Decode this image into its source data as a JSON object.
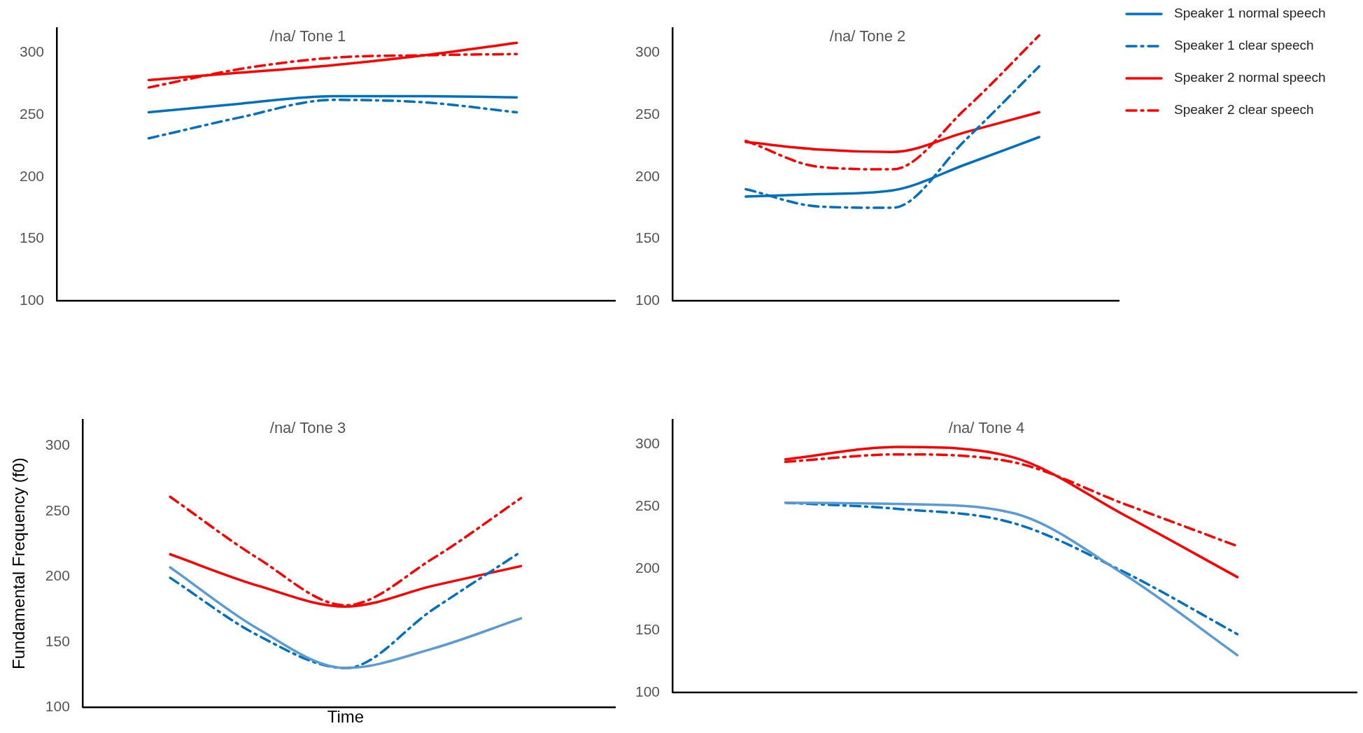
{
  "chart_data": [
    {
      "type": "line",
      "title": "/na/ Tone 1",
      "categories": [
        null,
        null,
        null,
        null,
        null,
        null,
        null
      ],
      "ylim": [
        100,
        320
      ],
      "yticks": [
        100,
        150,
        200,
        250,
        300
      ],
      "grid": false,
      "legend": false,
      "tick_labels": "y",
      "marker": "none",
      "series": [
        {
          "color": "#0070c0",
          "line_style": "solid",
          "values": [
            null,
            252,
            259,
            265,
            265,
            264,
            null
          ]
        },
        {
          "color": "#0070c0",
          "line_style": "dashed",
          "values": [
            null,
            231,
            248,
            262,
            260,
            252,
            null
          ]
        },
        {
          "color": "#ff0000",
          "line_style": "solid",
          "values": [
            null,
            278,
            284,
            290,
            298,
            308,
            null
          ]
        },
        {
          "color": "#ff0000",
          "line_style": "dashed",
          "values": [
            null,
            272,
            287,
            296,
            298,
            299,
            null
          ]
        }
      ]
    },
    {
      "type": "line",
      "title": "/na/ Tone 2",
      "categories": [
        null,
        null,
        null,
        null,
        null,
        null,
        null
      ],
      "ylim": [
        100,
        320
      ],
      "yticks": [
        100,
        150,
        200,
        250,
        300
      ],
      "grid": false,
      "legend": "top right",
      "tick_labels": "y",
      "marker": "none",
      "series": [
        {
          "name": "Speaker 1 normal speech",
          "color": "#0070c0",
          "line_style": "solid",
          "values": [
            null,
            184,
            186,
            189,
            210,
            232,
            null
          ]
        },
        {
          "name": "Speaker 1 clear speech",
          "color": "#0070c0",
          "line_style": "dashed",
          "values": [
            null,
            190,
            176,
            175,
            230,
            289,
            null
          ]
        },
        {
          "name": "Speaker 2 normal speech",
          "color": "#ff0000",
          "line_style": "solid",
          "values": [
            null,
            228,
            222,
            220,
            236,
            252,
            null
          ]
        },
        {
          "name": "Speaker 2 clear speech",
          "color": "#ff0000",
          "line_style": "dashed",
          "values": [
            null,
            229,
            208,
            206,
            255,
            314,
            null
          ]
        }
      ]
    },
    {
      "type": "line",
      "title": "/na/ Tone 3",
      "xlabel": "Time",
      "ylabel": "Fundamental Frequency (f0)",
      "categories": [
        null,
        null,
        null,
        null,
        null,
        null,
        null
      ],
      "ylim": [
        100,
        320
      ],
      "yticks": [
        100,
        150,
        200,
        250,
        300
      ],
      "grid": false,
      "legend": false,
      "tick_labels": "y",
      "marker": "none",
      "series": [
        {
          "color": "#5b9bd5",
          "line_style": "solid",
          "values": [
            null,
            207,
            160,
            130,
            145,
            168,
            null
          ]
        },
        {
          "color": "#0070c0",
          "line_style": "dashed",
          "values": [
            null,
            199,
            155,
            130,
            175,
            219,
            null
          ]
        },
        {
          "color": "#ff0000",
          "line_style": "solid",
          "values": [
            null,
            217,
            193,
            177,
            193,
            208,
            null
          ]
        },
        {
          "color": "#ff0000",
          "line_style": "dashed",
          "values": [
            null,
            261,
            214,
            178,
            214,
            260,
            null
          ]
        }
      ]
    },
    {
      "type": "line",
      "title": "/na/ Tone 4",
      "categories": [
        null,
        null,
        null,
        null,
        null,
        null,
        null
      ],
      "ylim": [
        100,
        320
      ],
      "yticks": [
        100,
        150,
        200,
        250,
        300
      ],
      "grid": false,
      "legend": false,
      "tick_labels": "y",
      "marker": "none",
      "series": [
        {
          "color": "#5b9bd5",
          "line_style": "solid",
          "values": [
            null,
            253,
            252,
            245,
            195,
            130,
            null
          ]
        },
        {
          "color": "#0070c0",
          "line_style": "dashed",
          "values": [
            null,
            253,
            248,
            237,
            197,
            147,
            null
          ]
        },
        {
          "color": "#ff0000",
          "line_style": "solid",
          "values": [
            null,
            288,
            298,
            290,
            243,
            193,
            null
          ]
        },
        {
          "color": "#ff0000",
          "line_style": "dashed",
          "values": [
            null,
            286,
            292,
            286,
            252,
            218,
            null
          ]
        }
      ]
    }
  ]
}
